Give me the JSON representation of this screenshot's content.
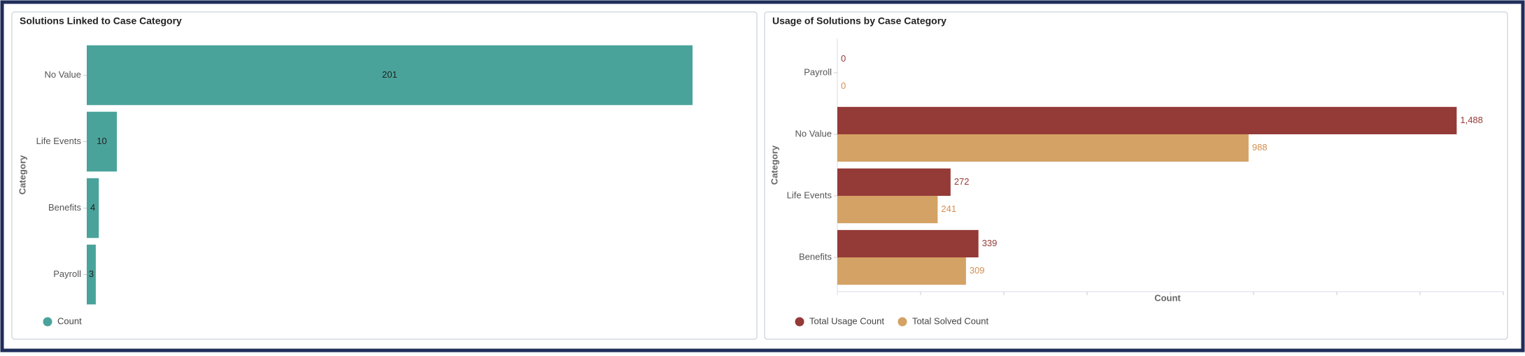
{
  "chart_data": [
    {
      "type": "bar",
      "orientation": "horizontal",
      "title": "Solutions Linked to Case Category",
      "y_label": "Category",
      "categories": [
        "No Value",
        "Life Events",
        "Benefits",
        "Payroll"
      ],
      "series": [
        {
          "name": "Count",
          "color": "#4aa39a",
          "label_color": "#222222",
          "label_position": "center",
          "values": [
            201,
            10,
            4,
            3
          ]
        }
      ]
    },
    {
      "type": "bar",
      "orientation": "horizontal",
      "title": "Usage of Solutions by Case Category",
      "x_label": "Count",
      "y_label": "Category",
      "categories": [
        "Payroll",
        "No Value",
        "Life Events",
        "Benefits"
      ],
      "xlim": [
        0,
        1600
      ],
      "xticks": [
        0,
        200,
        400,
        600,
        800,
        1000,
        1200,
        1400,
        1600
      ],
      "series": [
        {
          "name": "Total Usage Count",
          "color": "#943a37",
          "label_color": "#943a37",
          "label_position": "end",
          "values": [
            0,
            1488,
            272,
            339
          ],
          "value_labels": [
            "0",
            "1,488",
            "272",
            "339"
          ]
        },
        {
          "name": "Total Solved Count",
          "color": "#d4a265",
          "label_color": "#d48f50",
          "label_position": "end",
          "values": [
            0,
            988,
            241,
            309
          ]
        }
      ]
    }
  ]
}
